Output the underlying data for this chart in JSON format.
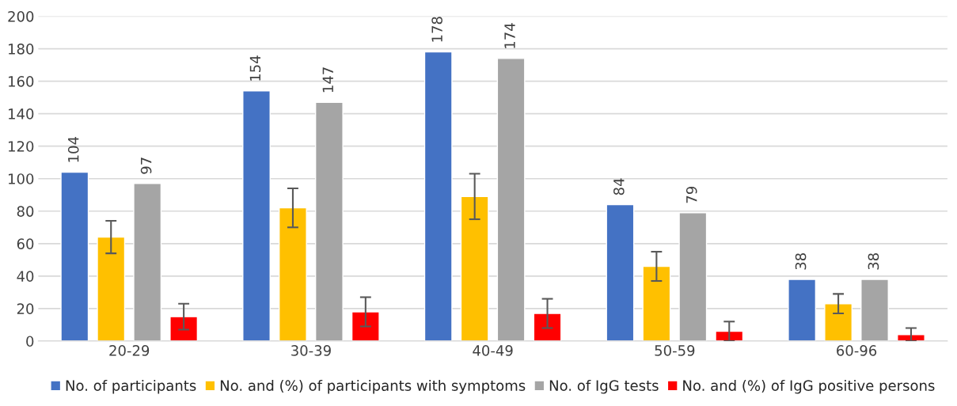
{
  "chart_data": {
    "type": "bar",
    "categories": [
      "20-29",
      "30-39",
      "40-49",
      "50-59",
      "60-96"
    ],
    "series": [
      {
        "name": "No. of participants",
        "color": "#4472c4",
        "values": [
          104,
          154,
          178,
          84,
          38
        ],
        "value_labels": [
          "104",
          "154",
          "178",
          "84",
          "38"
        ]
      },
      {
        "name": "No. and (%) of participants with symptoms",
        "color": "#ffc000",
        "values": [
          64,
          82,
          89,
          46,
          23
        ],
        "errors": [
          10,
          12,
          14,
          9,
          6
        ]
      },
      {
        "name": "No. of IgG tests",
        "color": "#a5a5a5",
        "values": [
          97,
          147,
          174,
          79,
          38
        ],
        "value_labels": [
          "97",
          "147",
          "174",
          "79",
          "38"
        ]
      },
      {
        "name": "No. and (%) of IgG positive persons",
        "color": "#ff0000",
        "values": [
          15,
          18,
          17,
          6,
          4
        ],
        "errors": [
          8,
          9,
          9,
          6,
          4
        ]
      }
    ],
    "ylim": [
      0,
      200
    ],
    "yticks": [
      0,
      20,
      40,
      60,
      80,
      100,
      120,
      140,
      160,
      180,
      200
    ],
    "grid": "y",
    "legend": "bottom"
  }
}
